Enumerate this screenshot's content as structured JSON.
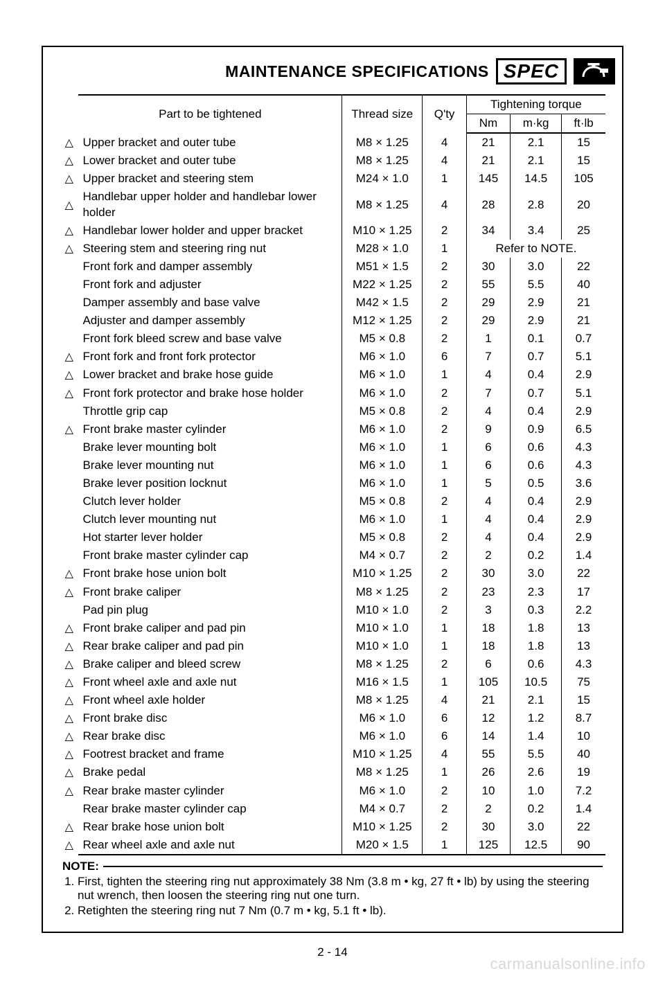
{
  "header": {
    "title": "MAINTENANCE SPECIFICATIONS",
    "spec_label": "SPEC"
  },
  "table": {
    "columns": {
      "part": "Part to be tightened",
      "thread": "Thread size",
      "qty": "Q'ty",
      "torque_group": "Tightening torque",
      "nm": "Nm",
      "mkg": "m·kg",
      "ftlb": "ft·lb"
    },
    "refnote": "Refer to NOTE.",
    "rows": [
      {
        "mark": true,
        "part": "Upper bracket and outer tube",
        "thread": "M8 × 1.25",
        "qty": "4",
        "nm": "21",
        "mkg": "2.1",
        "ftlb": "15"
      },
      {
        "mark": true,
        "part": "Lower bracket and outer tube",
        "thread": "M8 × 1.25",
        "qty": "4",
        "nm": "21",
        "mkg": "2.1",
        "ftlb": "15"
      },
      {
        "mark": true,
        "part": "Upper bracket and steering stem",
        "thread": "M24 × 1.0",
        "qty": "1",
        "nm": "145",
        "mkg": "14.5",
        "ftlb": "105"
      },
      {
        "mark": true,
        "part": "Handlebar upper holder and handlebar lower holder",
        "thread": "M8 × 1.25",
        "qty": "4",
        "nm": "28",
        "mkg": "2.8",
        "ftlb": "20"
      },
      {
        "mark": true,
        "part": "Handlebar lower holder and upper bracket",
        "thread": "M10 × 1.25",
        "qty": "2",
        "nm": "34",
        "mkg": "3.4",
        "ftlb": "25"
      },
      {
        "mark": true,
        "part": "Steering stem and steering ring nut",
        "thread": "M28 × 1.0",
        "qty": "1",
        "refnote": true
      },
      {
        "mark": false,
        "part": "Front fork and damper assembly",
        "thread": "M51 × 1.5",
        "qty": "2",
        "nm": "30",
        "mkg": "3.0",
        "ftlb": "22"
      },
      {
        "mark": false,
        "part": "Front fork and adjuster",
        "thread": "M22 × 1.25",
        "qty": "2",
        "nm": "55",
        "mkg": "5.5",
        "ftlb": "40"
      },
      {
        "mark": false,
        "part": "Damper assembly and base valve",
        "thread": "M42 × 1.5",
        "qty": "2",
        "nm": "29",
        "mkg": "2.9",
        "ftlb": "21"
      },
      {
        "mark": false,
        "part": "Adjuster and damper assembly",
        "thread": "M12 × 1.25",
        "qty": "2",
        "nm": "29",
        "mkg": "2.9",
        "ftlb": "21"
      },
      {
        "mark": false,
        "part": "Front fork bleed screw and base valve",
        "thread": "M5 × 0.8",
        "qty": "2",
        "nm": "1",
        "mkg": "0.1",
        "ftlb": "0.7"
      },
      {
        "mark": true,
        "part": "Front fork and front fork protector",
        "thread": "M6 × 1.0",
        "qty": "6",
        "nm": "7",
        "mkg": "0.7",
        "ftlb": "5.1"
      },
      {
        "mark": true,
        "part": "Lower bracket and brake hose guide",
        "thread": "M6 × 1.0",
        "qty": "1",
        "nm": "4",
        "mkg": "0.4",
        "ftlb": "2.9"
      },
      {
        "mark": true,
        "part": "Front fork protector and brake hose holder",
        "thread": "M6 × 1.0",
        "qty": "2",
        "nm": "7",
        "mkg": "0.7",
        "ftlb": "5.1"
      },
      {
        "mark": false,
        "part": "Throttle grip cap",
        "thread": "M5 × 0.8",
        "qty": "2",
        "nm": "4",
        "mkg": "0.4",
        "ftlb": "2.9"
      },
      {
        "mark": true,
        "part": "Front brake master cylinder",
        "thread": "M6 × 1.0",
        "qty": "2",
        "nm": "9",
        "mkg": "0.9",
        "ftlb": "6.5"
      },
      {
        "mark": false,
        "part": "Brake lever mounting bolt",
        "thread": "M6 × 1.0",
        "qty": "1",
        "nm": "6",
        "mkg": "0.6",
        "ftlb": "4.3"
      },
      {
        "mark": false,
        "part": "Brake lever mounting nut",
        "thread": "M6 × 1.0",
        "qty": "1",
        "nm": "6",
        "mkg": "0.6",
        "ftlb": "4.3"
      },
      {
        "mark": false,
        "part": "Brake lever position locknut",
        "thread": "M6 × 1.0",
        "qty": "1",
        "nm": "5",
        "mkg": "0.5",
        "ftlb": "3.6"
      },
      {
        "mark": false,
        "part": "Clutch lever holder",
        "thread": "M5 × 0.8",
        "qty": "2",
        "nm": "4",
        "mkg": "0.4",
        "ftlb": "2.9"
      },
      {
        "mark": false,
        "part": "Clutch lever mounting nut",
        "thread": "M6 × 1.0",
        "qty": "1",
        "nm": "4",
        "mkg": "0.4",
        "ftlb": "2.9"
      },
      {
        "mark": false,
        "part": "Hot starter lever holder",
        "thread": "M5 × 0.8",
        "qty": "2",
        "nm": "4",
        "mkg": "0.4",
        "ftlb": "2.9"
      },
      {
        "mark": false,
        "part": "Front brake master cylinder cap",
        "thread": "M4 × 0.7",
        "qty": "2",
        "nm": "2",
        "mkg": "0.2",
        "ftlb": "1.4"
      },
      {
        "mark": true,
        "part": "Front brake hose union bolt",
        "thread": "M10 × 1.25",
        "qty": "2",
        "nm": "30",
        "mkg": "3.0",
        "ftlb": "22"
      },
      {
        "mark": true,
        "part": "Front brake caliper",
        "thread": "M8 × 1.25",
        "qty": "2",
        "nm": "23",
        "mkg": "2.3",
        "ftlb": "17"
      },
      {
        "mark": false,
        "part": "Pad pin plug",
        "thread": "M10 × 1.0",
        "qty": "2",
        "nm": "3",
        "mkg": "0.3",
        "ftlb": "2.2"
      },
      {
        "mark": true,
        "part": "Front brake caliper and pad pin",
        "thread": "M10 × 1.0",
        "qty": "1",
        "nm": "18",
        "mkg": "1.8",
        "ftlb": "13"
      },
      {
        "mark": true,
        "part": "Rear brake caliper and pad pin",
        "thread": "M10 × 1.0",
        "qty": "1",
        "nm": "18",
        "mkg": "1.8",
        "ftlb": "13"
      },
      {
        "mark": true,
        "part": "Brake caliper and bleed screw",
        "thread": "M8 × 1.25",
        "qty": "2",
        "nm": "6",
        "mkg": "0.6",
        "ftlb": "4.3"
      },
      {
        "mark": true,
        "part": "Front wheel axle and axle nut",
        "thread": "M16 × 1.5",
        "qty": "1",
        "nm": "105",
        "mkg": "10.5",
        "ftlb": "75"
      },
      {
        "mark": true,
        "part": "Front wheel axle holder",
        "thread": "M8 × 1.25",
        "qty": "4",
        "nm": "21",
        "mkg": "2.1",
        "ftlb": "15"
      },
      {
        "mark": true,
        "part": "Front brake disc",
        "thread": "M6 × 1.0",
        "qty": "6",
        "nm": "12",
        "mkg": "1.2",
        "ftlb": "8.7"
      },
      {
        "mark": true,
        "part": "Rear brake disc",
        "thread": "M6 × 1.0",
        "qty": "6",
        "nm": "14",
        "mkg": "1.4",
        "ftlb": "10"
      },
      {
        "mark": true,
        "part": "Footrest bracket and frame",
        "thread": "M10 × 1.25",
        "qty": "4",
        "nm": "55",
        "mkg": "5.5",
        "ftlb": "40"
      },
      {
        "mark": true,
        "part": "Brake pedal",
        "thread": "M8 × 1.25",
        "qty": "1",
        "nm": "26",
        "mkg": "2.6",
        "ftlb": "19"
      },
      {
        "mark": true,
        "part": "Rear brake master cylinder",
        "thread": "M6 × 1.0",
        "qty": "2",
        "nm": "10",
        "mkg": "1.0",
        "ftlb": "7.2"
      },
      {
        "mark": false,
        "part": "Rear brake master cylinder cap",
        "thread": "M4 × 0.7",
        "qty": "2",
        "nm": "2",
        "mkg": "0.2",
        "ftlb": "1.4"
      },
      {
        "mark": true,
        "part": "Rear brake hose union bolt",
        "thread": "M10 × 1.25",
        "qty": "2",
        "nm": "30",
        "mkg": "3.0",
        "ftlb": "22"
      },
      {
        "mark": true,
        "part": "Rear wheel axle and axle nut",
        "thread": "M20 × 1.5",
        "qty": "1",
        "nm": "125",
        "mkg": "12.5",
        "ftlb": "90"
      }
    ]
  },
  "note": {
    "label": "NOTE:",
    "items": [
      "First, tighten the steering ring nut approximately 38 Nm (3.8 m • kg, 27 ft • lb) by using the steering nut wrench, then loosen the steering ring nut one turn.",
      "Retighten the steering ring nut 7 Nm (0.7 m • kg, 5.1 ft • lb)."
    ]
  },
  "pagenum": "2 - 14",
  "watermark": "carmanualsonline.info"
}
